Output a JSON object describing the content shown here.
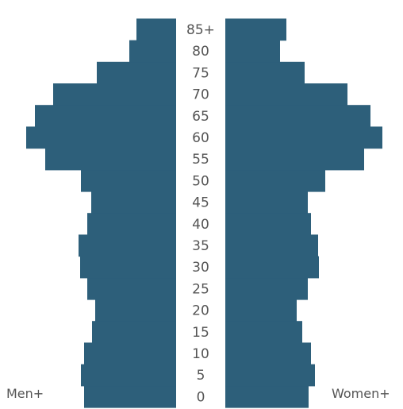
{
  "chart_data": {
    "type": "bar",
    "orientation": "horizontal",
    "layout": "population-pyramid",
    "categories": [
      "0",
      "5",
      "10",
      "15",
      "20",
      "25",
      "30",
      "35",
      "40",
      "45",
      "50",
      "55",
      "60",
      "65",
      "70",
      "75",
      "80",
      "85+"
    ],
    "series": [
      {
        "name": "Men+",
        "side": "left",
        "values": [
          116,
          120,
          116,
          106,
          102,
          112,
          121,
          123,
          112,
          107,
          120,
          165,
          189,
          178,
          155,
          100,
          59,
          50
        ]
      },
      {
        "name": "Women+",
        "side": "right",
        "values": [
          105,
          113,
          108,
          97,
          90,
          104,
          118,
          117,
          108,
          104,
          126,
          175,
          198,
          183,
          154,
          100,
          69,
          77
        ]
      }
    ],
    "xlim": [
      0,
      200
    ],
    "bar_color": "#2d5f7a",
    "grid": false,
    "legend": "none"
  }
}
